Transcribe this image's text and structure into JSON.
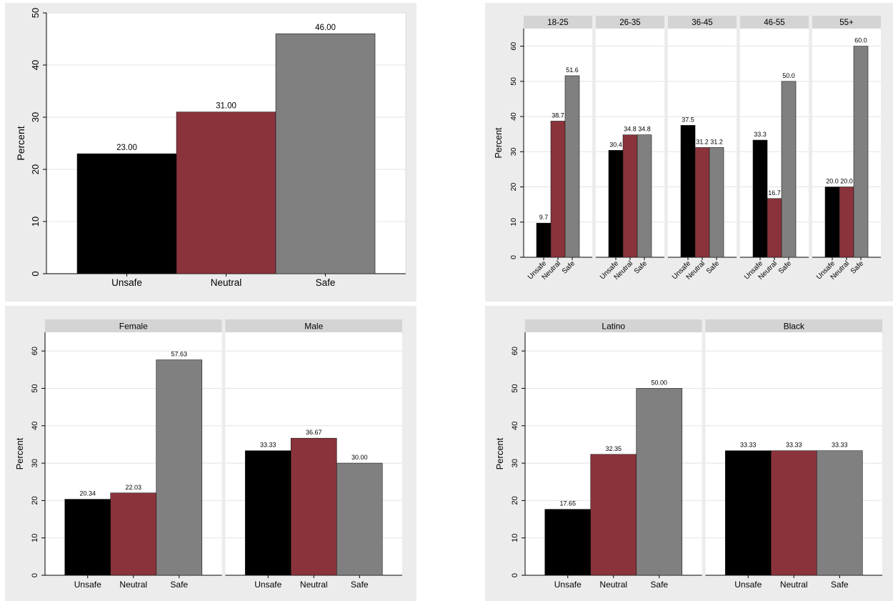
{
  "colors": {
    "Unsafe": "#000000",
    "Neutral": "#8b333b",
    "Safe": "#808080",
    "panel_bg": "#ececec",
    "strip_bg": "#d4d4d4",
    "grid": "#e3e3e3"
  },
  "chart_data": [
    {
      "type": "bar",
      "title": "",
      "xlabel": "",
      "ylabel": "Percent",
      "ylim": [
        0,
        50
      ],
      "yticks": [
        0,
        10,
        20,
        30,
        40,
        50
      ],
      "grid": true,
      "categories": [
        "Unsafe",
        "Neutral",
        "Safe"
      ],
      "panels": [
        {
          "label": "",
          "values": [
            23.0,
            31.0,
            46.0
          ],
          "value_labels": [
            "23.00",
            "31.00",
            "46.00"
          ]
        }
      ]
    },
    {
      "type": "bar",
      "title": "",
      "xlabel": "",
      "ylabel": "Percent",
      "ylim": [
        0,
        65
      ],
      "yticks": [
        0,
        10,
        20,
        30,
        40,
        50,
        60
      ],
      "grid": true,
      "categories": [
        "Unsafe",
        "Neutral",
        "Safe"
      ],
      "panels": [
        {
          "label": "18-25",
          "values": [
            9.7,
            38.7,
            51.6
          ],
          "value_labels": [
            "9.7",
            "38.7",
            "51.6"
          ]
        },
        {
          "label": "26-35",
          "values": [
            30.4,
            34.8,
            34.8
          ],
          "value_labels": [
            "30.4",
            "34.8",
            "34.8"
          ]
        },
        {
          "label": "36-45",
          "values": [
            37.5,
            31.2,
            31.2
          ],
          "value_labels": [
            "37.5",
            "31.2",
            "31.2"
          ]
        },
        {
          "label": "46-55",
          "values": [
            33.3,
            16.7,
            50.0
          ],
          "value_labels": [
            "33.3",
            "16.7",
            "50.0"
          ]
        },
        {
          "label": "55+",
          "values": [
            20.0,
            20.0,
            60.0
          ],
          "value_labels": [
            "20.0",
            "20.0",
            "60.0"
          ]
        }
      ]
    },
    {
      "type": "bar",
      "title": "",
      "xlabel": "",
      "ylabel": "Percent",
      "ylim": [
        0,
        65
      ],
      "yticks": [
        0,
        10,
        20,
        30,
        40,
        50,
        60
      ],
      "grid": true,
      "categories": [
        "Unsafe",
        "Neutral",
        "Safe"
      ],
      "panels": [
        {
          "label": "Female",
          "values": [
            20.34,
            22.03,
            57.63
          ],
          "value_labels": [
            "20.34",
            "22.03",
            "57.63"
          ]
        },
        {
          "label": "Male",
          "values": [
            33.33,
            36.67,
            30.0
          ],
          "value_labels": [
            "33.33",
            "36.67",
            "30.00"
          ]
        }
      ]
    },
    {
      "type": "bar",
      "title": "",
      "xlabel": "",
      "ylabel": "Percent",
      "ylim": [
        0,
        65
      ],
      "yticks": [
        0,
        10,
        20,
        30,
        40,
        50,
        60
      ],
      "grid": true,
      "categories": [
        "Unsafe",
        "Neutral",
        "Safe"
      ],
      "panels": [
        {
          "label": "Latino",
          "values": [
            17.65,
            32.35,
            50.0
          ],
          "value_labels": [
            "17.65",
            "32.35",
            "50.00"
          ]
        },
        {
          "label": "Black",
          "values": [
            33.33,
            33.33,
            33.33
          ],
          "value_labels": [
            "33.33",
            "33.33",
            "33.33"
          ]
        }
      ]
    }
  ]
}
